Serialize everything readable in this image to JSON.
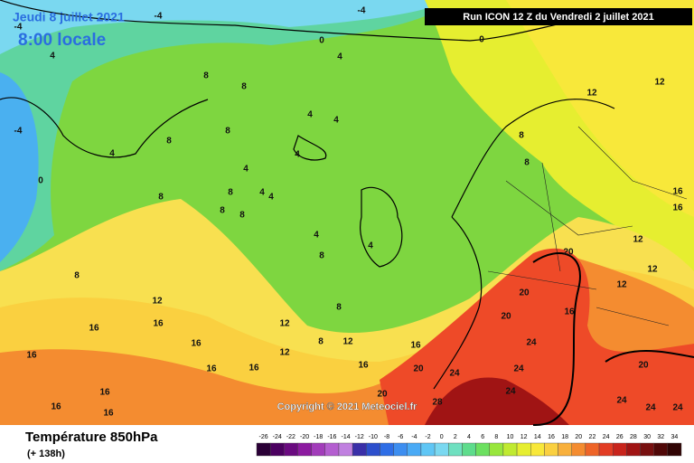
{
  "header": {
    "valid_date": "Jeudi 8 juillet 2021",
    "local_time": "8:00 locale",
    "run": "Run ICON 12 Z du Vendredi 2 juillet 2021"
  },
  "footer": {
    "copyright": "Copyright © 2021 Meteociel.fr",
    "title": "Température 850hPa",
    "forecast_hour": "(+ 138h)"
  },
  "map": {
    "contour_labels": [
      -4,
      -4,
      -4,
      0,
      0,
      4,
      4,
      8,
      8,
      12,
      12,
      -4,
      0,
      4,
      4,
      4,
      8,
      8,
      4,
      4,
      4,
      4,
      8,
      8,
      8,
      8,
      4,
      4,
      8,
      8,
      12,
      16,
      16,
      16,
      16,
      16,
      16,
      12,
      12,
      8,
      12,
      16,
      16,
      20,
      20,
      20,
      20,
      24,
      24,
      24,
      28,
      20,
      16,
      20,
      24,
      24,
      16,
      16,
      12,
      12,
      12,
      16,
      16,
      16,
      24,
      24,
      8,
      8,
      8
    ]
  },
  "scale": {
    "ticks": [
      -26,
      -24,
      -22,
      -20,
      -18,
      -16,
      -14,
      -12,
      -10,
      -8,
      -6,
      -4,
      -2,
      0,
      2,
      4,
      6,
      8,
      10,
      12,
      14,
      16,
      18,
      20,
      22,
      24,
      26,
      28,
      30,
      32,
      34
    ],
    "colors": [
      "#2a0036",
      "#4b0060",
      "#6a0a80",
      "#8c1aa0",
      "#a23cba",
      "#b45ed0",
      "#c080e0",
      "#3a2fa8",
      "#2d4fcc",
      "#2f6ee6",
      "#3d8ef0",
      "#4aaaf5",
      "#5fc6f5",
      "#7ad8f0",
      "#6fe0c0",
      "#5edc8c",
      "#6ce060",
      "#98e63c",
      "#c0ea30",
      "#e6ee30",
      "#f8e83a",
      "#fad040",
      "#f8b03c",
      "#f48c30",
      "#ee6428",
      "#e23c24",
      "#c8241c",
      "#a01414",
      "#781010",
      "#500808",
      "#300404"
    ]
  }
}
